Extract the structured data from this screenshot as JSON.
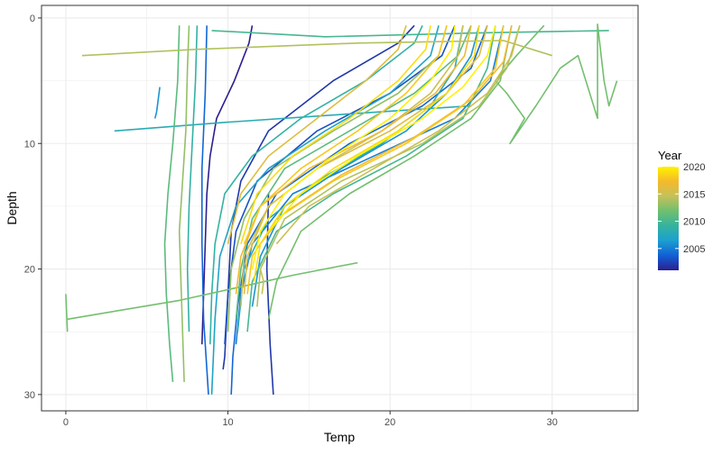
{
  "chart_data": {
    "type": "line",
    "title": "",
    "xlabel": "Temp",
    "ylabel": "Depth",
    "xlim": [
      -1.5,
      35.3
    ],
    "ylim": [
      31.3,
      -1.0
    ],
    "y_reversed": true,
    "x_ticks": [
      0,
      10,
      20,
      30
    ],
    "y_ticks": [
      0,
      10,
      20,
      30
    ],
    "grid": true,
    "theme": "bw",
    "legend": {
      "title": "Year",
      "placement": "right",
      "type": "colorbar",
      "min": 2001,
      "max": 2020,
      "ticks": [
        2005,
        2010,
        2015,
        2020
      ],
      "palette": [
        "#2b1f8f",
        "#1160d6",
        "#1c9fd0",
        "#34b3a0",
        "#6fbf6f",
        "#c4c15a",
        "#f5b92c",
        "#fff200"
      ]
    },
    "series": [
      {
        "year": 2001,
        "points": [
          [
            11.5,
            0.6
          ],
          [
            11.3,
            2
          ],
          [
            10.4,
            5
          ],
          [
            9.3,
            8
          ],
          [
            8.9,
            11
          ],
          [
            8.7,
            14
          ],
          [
            8.6,
            18
          ],
          [
            8.5,
            22
          ],
          [
            8.4,
            26
          ]
        ]
      },
      {
        "year": 2002,
        "points": [
          [
            21.5,
            0.6
          ],
          [
            20.5,
            2
          ],
          [
            16.5,
            5
          ],
          [
            12.5,
            9
          ],
          [
            10.8,
            13
          ],
          [
            10.2,
            17
          ],
          [
            10.0,
            22
          ],
          [
            9.8,
            27
          ],
          [
            9.7,
            28
          ]
        ]
      },
      {
        "year": 2003,
        "points": [
          [
            24.0,
            0.6
          ],
          [
            23.2,
            3
          ],
          [
            20.0,
            6
          ],
          [
            15.5,
            9
          ],
          [
            11.8,
            13
          ],
          [
            10.5,
            17
          ],
          [
            10.0,
            22
          ],
          [
            9.8,
            26
          ]
        ]
      },
      {
        "year": 2004,
        "points": [
          [
            26.0,
            0.6
          ],
          [
            25.0,
            4
          ],
          [
            22.0,
            7
          ],
          [
            17.5,
            10
          ],
          [
            13.0,
            14
          ],
          [
            11.2,
            18
          ],
          [
            10.6,
            23
          ],
          [
            10.3,
            27
          ],
          [
            10.2,
            30
          ]
        ]
      },
      {
        "year": 2005,
        "points": [
          [
            27.0,
            0.6
          ],
          [
            26.2,
            5
          ],
          [
            24.0,
            8
          ],
          [
            19.0,
            11
          ],
          [
            14.0,
            14
          ],
          [
            11.5,
            18
          ],
          [
            10.8,
            22
          ],
          [
            10.5,
            26
          ]
        ]
      },
      {
        "year": 2006,
        "points": [
          [
            25.5,
            0.6
          ],
          [
            25.0,
            3
          ],
          [
            23.5,
            6
          ],
          [
            21.0,
            9
          ],
          [
            17.0,
            12
          ],
          [
            13.5,
            15
          ],
          [
            12.0,
            19
          ],
          [
            11.5,
            23
          ]
        ]
      },
      {
        "year": 2007,
        "points": [
          [
            23.0,
            0.6
          ],
          [
            22.5,
            3
          ],
          [
            20.0,
            6
          ],
          [
            16.0,
            9
          ],
          [
            12.5,
            12
          ],
          [
            10.5,
            15
          ],
          [
            9.5,
            19
          ],
          [
            9.2,
            24
          ],
          [
            9.0,
            30
          ]
        ]
      },
      {
        "year": 2008,
        "points": [
          [
            24.5,
            0.6
          ],
          [
            24.0,
            4
          ],
          [
            22.5,
            7
          ],
          [
            19.5,
            10
          ],
          [
            15.5,
            13
          ],
          [
            12.5,
            16
          ],
          [
            11.0,
            20
          ],
          [
            10.6,
            25
          ]
        ]
      },
      {
        "year": 2009,
        "points": [
          [
            22.0,
            0.6
          ],
          [
            21.5,
            2
          ],
          [
            18.5,
            5
          ],
          [
            14.5,
            8
          ],
          [
            11.5,
            11
          ],
          [
            9.8,
            14
          ],
          [
            9.2,
            18
          ],
          [
            9.0,
            22
          ],
          [
            8.9,
            26
          ]
        ]
      },
      {
        "year": 2010,
        "points": [
          [
            26.5,
            0.6
          ],
          [
            26.0,
            4
          ],
          [
            24.5,
            8
          ],
          [
            21.0,
            11
          ],
          [
            16.5,
            14
          ],
          [
            13.0,
            17
          ],
          [
            11.5,
            21
          ],
          [
            11.2,
            25
          ]
        ]
      },
      {
        "year": 2011,
        "points": [
          [
            25.0,
            0.6
          ],
          [
            24.2,
            3
          ],
          [
            21.5,
            6
          ],
          [
            17.5,
            9
          ],
          [
            13.5,
            12
          ],
          [
            11.5,
            16
          ],
          [
            10.8,
            20
          ],
          [
            10.5,
            24
          ]
        ]
      },
      {
        "year": 2012,
        "points": [
          [
            27.5,
            0.6
          ],
          [
            26.8,
            5
          ],
          [
            25.0,
            8
          ],
          [
            21.5,
            11
          ],
          [
            17.5,
            14
          ],
          [
            14.5,
            17
          ],
          [
            13.0,
            21
          ],
          [
            12.5,
            24
          ]
        ]
      },
      {
        "year": 2013,
        "points": [
          [
            23.5,
            0.6
          ],
          [
            23.0,
            3
          ],
          [
            20.5,
            6
          ],
          [
            16.5,
            9
          ],
          [
            12.8,
            12
          ],
          [
            11.0,
            16
          ],
          [
            10.2,
            20
          ],
          [
            10.0,
            25
          ]
        ]
      },
      {
        "year": 2014,
        "points": [
          [
            28.0,
            0.6
          ],
          [
            27.2,
            4
          ],
          [
            25.5,
            7
          ],
          [
            22.0,
            10
          ],
          [
            17.0,
            13
          ],
          [
            13.5,
            16
          ],
          [
            12.0,
            20
          ],
          [
            11.8,
            23
          ]
        ]
      },
      {
        "year": 2015,
        "points": [
          [
            24.5,
            0.6
          ],
          [
            24.2,
            3
          ],
          [
            22.5,
            6
          ],
          [
            19.5,
            9
          ],
          [
            15.5,
            12
          ],
          [
            12.5,
            15
          ],
          [
            11.0,
            19
          ],
          [
            10.8,
            23
          ]
        ]
      },
      {
        "year": 2016,
        "points": [
          [
            26.0,
            0.6
          ],
          [
            25.5,
            3
          ],
          [
            23.5,
            6
          ],
          [
            20.0,
            9
          ],
          [
            15.5,
            12
          ],
          [
            12.5,
            15
          ],
          [
            11.2,
            19
          ],
          [
            11.0,
            22
          ]
        ]
      },
      {
        "year": 2017,
        "points": [
          [
            25.0,
            0.6
          ],
          [
            24.6,
            3
          ],
          [
            22.8,
            6
          ],
          [
            19.5,
            9
          ],
          [
            15.0,
            12
          ],
          [
            12.0,
            15
          ],
          [
            10.8,
            19
          ],
          [
            10.5,
            22
          ]
        ]
      },
      {
        "year": 2018,
        "points": [
          [
            27.0,
            0.6
          ],
          [
            26.5,
            4
          ],
          [
            24.5,
            7
          ],
          [
            21.0,
            10
          ],
          [
            16.5,
            13
          ],
          [
            13.0,
            16
          ],
          [
            11.5,
            19
          ],
          [
            11.2,
            22
          ]
        ]
      },
      {
        "year": 2019,
        "points": [
          [
            25.5,
            0.6
          ],
          [
            25.2,
            3
          ],
          [
            23.5,
            6
          ],
          [
            20.5,
            9
          ],
          [
            16.5,
            12
          ],
          [
            13.5,
            15
          ],
          [
            12.0,
            18
          ],
          [
            11.6,
            21
          ]
        ]
      },
      {
        "year": 2020,
        "points": [
          [
            24.0,
            0.6
          ],
          [
            23.8,
            2.5
          ],
          [
            22.5,
            5
          ],
          [
            20.0,
            8
          ],
          [
            16.5,
            11
          ],
          [
            13.5,
            14
          ],
          [
            12.0,
            17
          ],
          [
            11.5,
            20
          ]
        ]
      },
      {
        "year": 2020,
        "points": [
          [
            26.5,
            0.6
          ],
          [
            26.0,
            3
          ],
          [
            24.5,
            5.5
          ],
          [
            22.0,
            8
          ],
          [
            18.0,
            11
          ],
          [
            14.5,
            14
          ],
          [
            12.5,
            17
          ]
        ]
      },
      {
        "year": 2019,
        "points": [
          [
            22.5,
            0.6
          ],
          [
            22.2,
            2.5
          ],
          [
            20.5,
            5
          ],
          [
            17.5,
            8
          ],
          [
            14.0,
            11
          ],
          [
            11.8,
            14
          ],
          [
            10.8,
            18
          ]
        ]
      },
      {
        "year": 2018,
        "points": [
          [
            23.5,
            0.6
          ],
          [
            23.0,
            3
          ],
          [
            21.0,
            6
          ],
          [
            18.0,
            9
          ],
          [
            14.5,
            12
          ],
          [
            12.0,
            15
          ],
          [
            11.0,
            18
          ]
        ]
      },
      {
        "year": 2017,
        "points": [
          [
            27.5,
            0.6
          ],
          [
            27.0,
            3.5
          ],
          [
            25.0,
            6.5
          ],
          [
            21.5,
            9.5
          ],
          [
            17.0,
            12.5
          ],
          [
            13.5,
            15.5
          ],
          [
            12.0,
            18
          ]
        ]
      },
      {
        "year": 2016,
        "points": [
          [
            21.0,
            0.6
          ],
          [
            20.5,
            2.5
          ],
          [
            18.5,
            5
          ],
          [
            15.5,
            8
          ],
          [
            12.5,
            11
          ],
          [
            10.8,
            14
          ],
          [
            10.0,
            18
          ]
        ]
      },
      {
        "year": 2015,
        "points": [
          [
            28.0,
            0.6
          ],
          [
            27.5,
            3
          ],
          [
            26.0,
            6
          ],
          [
            23.0,
            9
          ],
          [
            19.0,
            12
          ],
          [
            15.0,
            15
          ],
          [
            13.0,
            18
          ]
        ]
      },
      {
        "year": 2012,
        "points": [
          [
            29.5,
            0.6
          ],
          [
            27.8,
            3
          ],
          [
            26.5,
            5
          ],
          [
            27.2,
            6
          ],
          [
            28.3,
            8
          ],
          [
            27.4,
            10
          ],
          [
            29.0,
            7
          ],
          [
            30.5,
            4
          ],
          [
            31.6,
            3
          ],
          [
            32.8,
            8
          ],
          [
            32.8,
            0.5
          ],
          [
            33.2,
            5
          ],
          [
            33.5,
            7
          ],
          [
            34.0,
            5
          ]
        ]
      },
      {
        "year": 2011,
        "points": [
          [
            7.0,
            0.6
          ],
          [
            6.9,
            5
          ],
          [
            6.6,
            10
          ],
          [
            6.3,
            14
          ],
          [
            6.1,
            18
          ],
          [
            6.2,
            22
          ],
          [
            6.4,
            26
          ],
          [
            6.6,
            29
          ]
        ]
      },
      {
        "year": 2013,
        "points": [
          [
            7.6,
            0.6
          ],
          [
            7.5,
            4
          ],
          [
            7.4,
            9
          ],
          [
            7.2,
            13
          ],
          [
            7.0,
            17
          ],
          [
            7.1,
            21
          ],
          [
            7.2,
            25
          ],
          [
            7.3,
            29
          ]
        ]
      },
      {
        "year": 2009,
        "points": [
          [
            8.1,
            0.6
          ],
          [
            8.0,
            5
          ],
          [
            7.8,
            10
          ],
          [
            7.6,
            15
          ],
          [
            7.5,
            20
          ],
          [
            7.6,
            25
          ]
        ]
      },
      {
        "year": 2006,
        "points": [
          [
            5.8,
            5.5
          ],
          [
            5.6,
            7.5
          ],
          [
            5.5,
            8.0
          ]
        ]
      },
      {
        "year": 2008,
        "points": [
          [
            3.0,
            9.0
          ],
          [
            10.0,
            8.3
          ],
          [
            18.0,
            7.6
          ],
          [
            25.0,
            7.0
          ]
        ]
      },
      {
        "year": 2014,
        "points": [
          [
            1.0,
            3.0
          ],
          [
            8.0,
            2.5
          ],
          [
            18.0,
            2.0
          ],
          [
            27.0,
            1.8
          ],
          [
            30.0,
            3.0
          ]
        ]
      },
      {
        "year": 2012,
        "points": [
          [
            0.1,
            24.0
          ],
          [
            7.0,
            22.5
          ],
          [
            14.0,
            20.5
          ],
          [
            18.0,
            19.5
          ]
        ]
      },
      {
        "year": 2012,
        "points": [
          [
            0.0,
            22.0
          ],
          [
            0.1,
            25.0
          ]
        ]
      },
      {
        "year": 2015,
        "points": [
          [
            12.0,
            20.0
          ],
          [
            12.2,
            21.0
          ],
          [
            12.1,
            22.0
          ]
        ]
      },
      {
        "year": 2010,
        "points": [
          [
            9.0,
            1.0
          ],
          [
            16.0,
            1.5
          ],
          [
            25.0,
            1.2
          ],
          [
            33.5,
            1.0
          ]
        ]
      },
      {
        "year": 2004,
        "points": [
          [
            8.7,
            0.6
          ],
          [
            8.6,
            6
          ],
          [
            8.4,
            12
          ],
          [
            8.4,
            18
          ],
          [
            8.5,
            24
          ],
          [
            8.8,
            30
          ]
        ]
      },
      {
        "year": 2002,
        "points": [
          [
            12.5,
            14
          ],
          [
            12.4,
            20
          ],
          [
            12.6,
            26
          ],
          [
            12.8,
            30
          ]
        ]
      }
    ]
  }
}
